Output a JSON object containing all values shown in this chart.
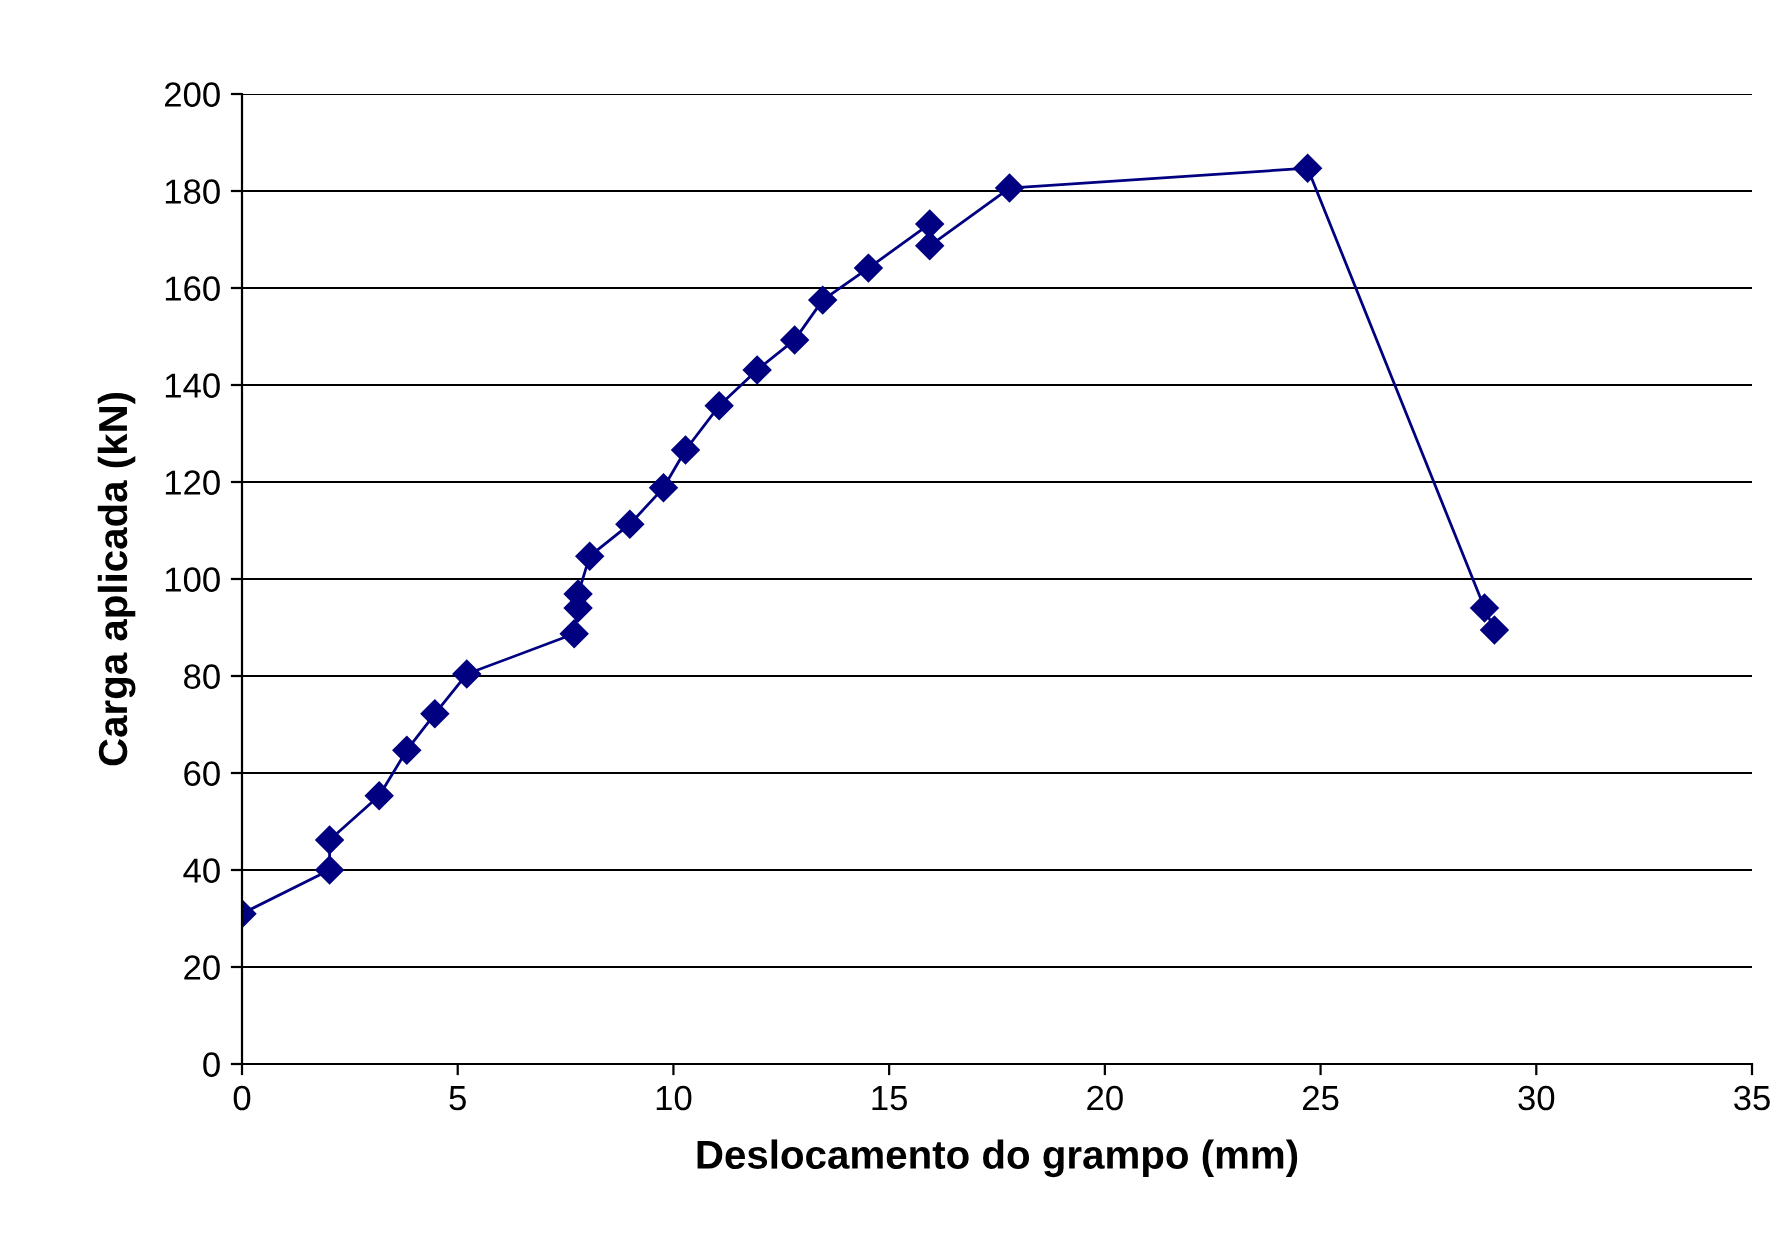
{
  "chart_data": {
    "type": "line",
    "xlabel": "Deslocamento do grampo (mm)",
    "ylabel": "Carga aplicada (kN)",
    "xlim": [
      0,
      35
    ],
    "xticks": [
      0,
      5,
      10,
      15,
      20,
      25,
      30,
      35
    ],
    "ylim": [
      0,
      200
    ],
    "yticks": [
      0,
      20,
      40,
      60,
      80,
      100,
      120,
      140,
      160,
      180,
      200
    ],
    "grid": "y",
    "marker": "diamond",
    "line_style": "solid",
    "series": [
      {
        "color": "#000080",
        "x": [
          0,
          2.03,
          2.03,
          3.18,
          3.82,
          4.47,
          5.21,
          7.7,
          7.79,
          7.79,
          8.06,
          8.99,
          9.77,
          10.28,
          11.06,
          11.94,
          12.81,
          13.46,
          14.52,
          15.94,
          15.94,
          17.79,
          24.7,
          28.8,
          29.03
        ],
        "values": [
          31,
          40,
          46.2,
          55.3,
          64.7,
          72.2,
          80.4,
          88.7,
          94,
          96.9,
          104.7,
          111.3,
          118.8,
          126.6,
          135.7,
          143.1,
          149.3,
          157.5,
          164.1,
          173.2,
          168.7,
          180.6,
          184.7,
          94,
          89.5
        ]
      }
    ]
  }
}
